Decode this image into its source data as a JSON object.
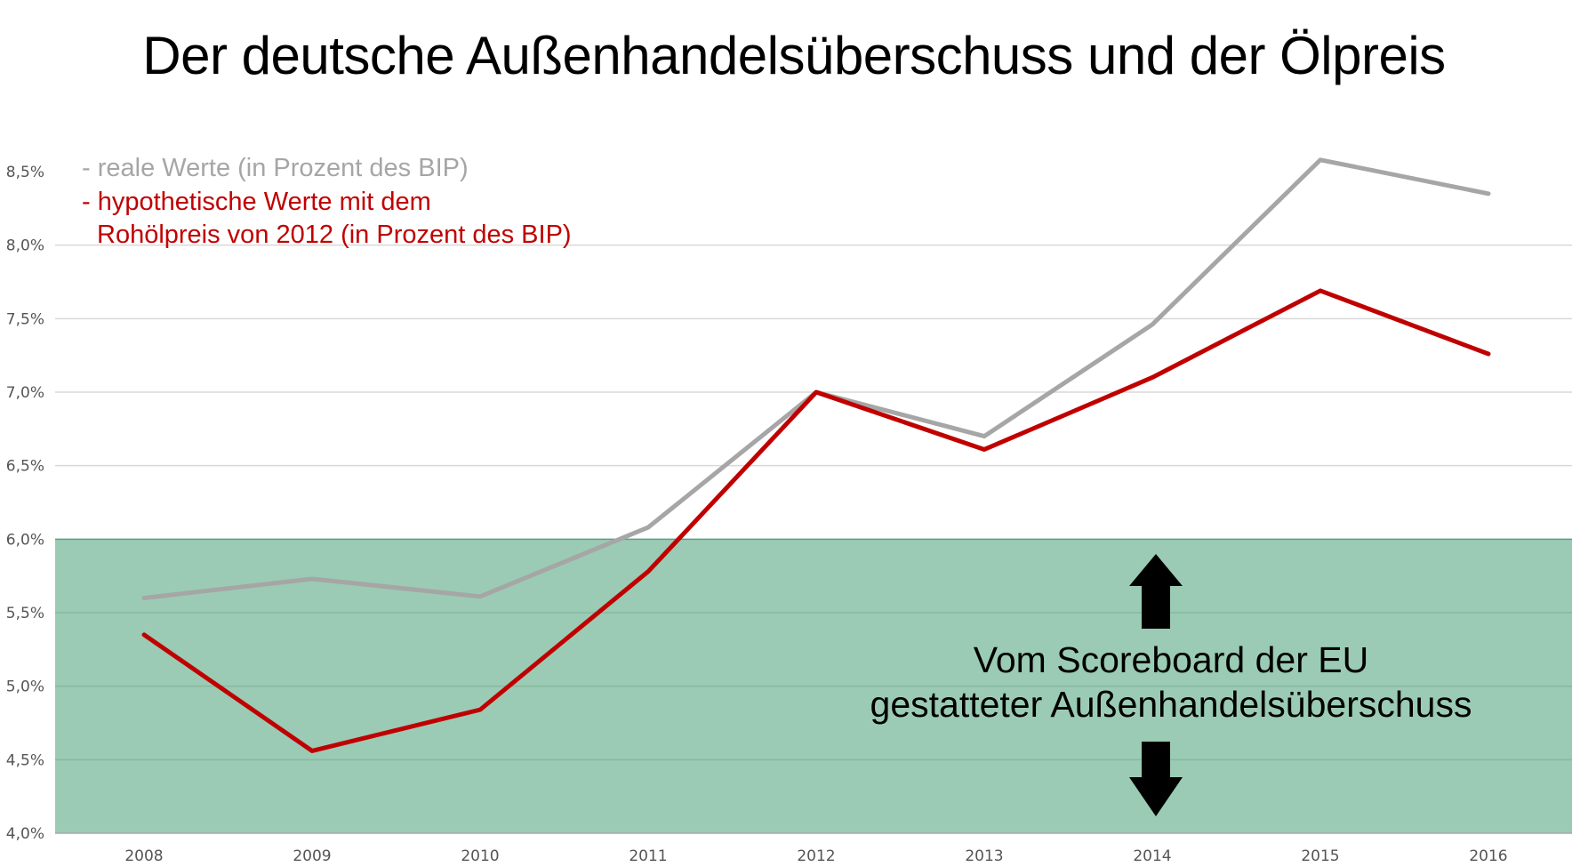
{
  "title": "Der deutsche Außenhandelsüberschuss und der Ölpreis",
  "legend": {
    "real": "- reale Werte (in Prozent des BIP)",
    "hypo_line1": "- hypothetische Werte mit dem",
    "hypo_line2": "Rohölpreis von 2012 (in Prozent des BIP)"
  },
  "annotation": {
    "line1": "Vom Scoreboard der EU",
    "line2": "gestatteter Außenhandelsüberschuss"
  },
  "colors": {
    "real": "#a6a6a6",
    "hypothetical": "#c00000",
    "band": "#9bcbb4",
    "grid": "#d9d9d9"
  },
  "chart_data": {
    "type": "line",
    "x": [
      "2008",
      "2009",
      "2010",
      "2011",
      "2012",
      "2013",
      "2014",
      "2015",
      "2016"
    ],
    "ylim": [
      4.0,
      8.5
    ],
    "yticks": [
      "4,0%",
      "4,5%",
      "5,0%",
      "5,5%",
      "6,0%",
      "6,5%",
      "7,0%",
      "7,5%",
      "8,0%",
      "8,5%"
    ],
    "grid": true,
    "legend_position": "top-left",
    "band": {
      "from": 4.0,
      "to": 6.0
    },
    "series": [
      {
        "name": "reale Werte (in Prozent des BIP)",
        "values": [
          5.6,
          5.73,
          5.61,
          6.08,
          7.0,
          6.7,
          7.46,
          8.58,
          8.35
        ]
      },
      {
        "name": "hypothetische Werte mit dem Rohölpreis von 2012 (in Prozent des BIP)",
        "values": [
          5.35,
          4.56,
          4.84,
          5.78,
          7.0,
          6.61,
          7.1,
          7.69,
          7.26
        ]
      }
    ]
  }
}
